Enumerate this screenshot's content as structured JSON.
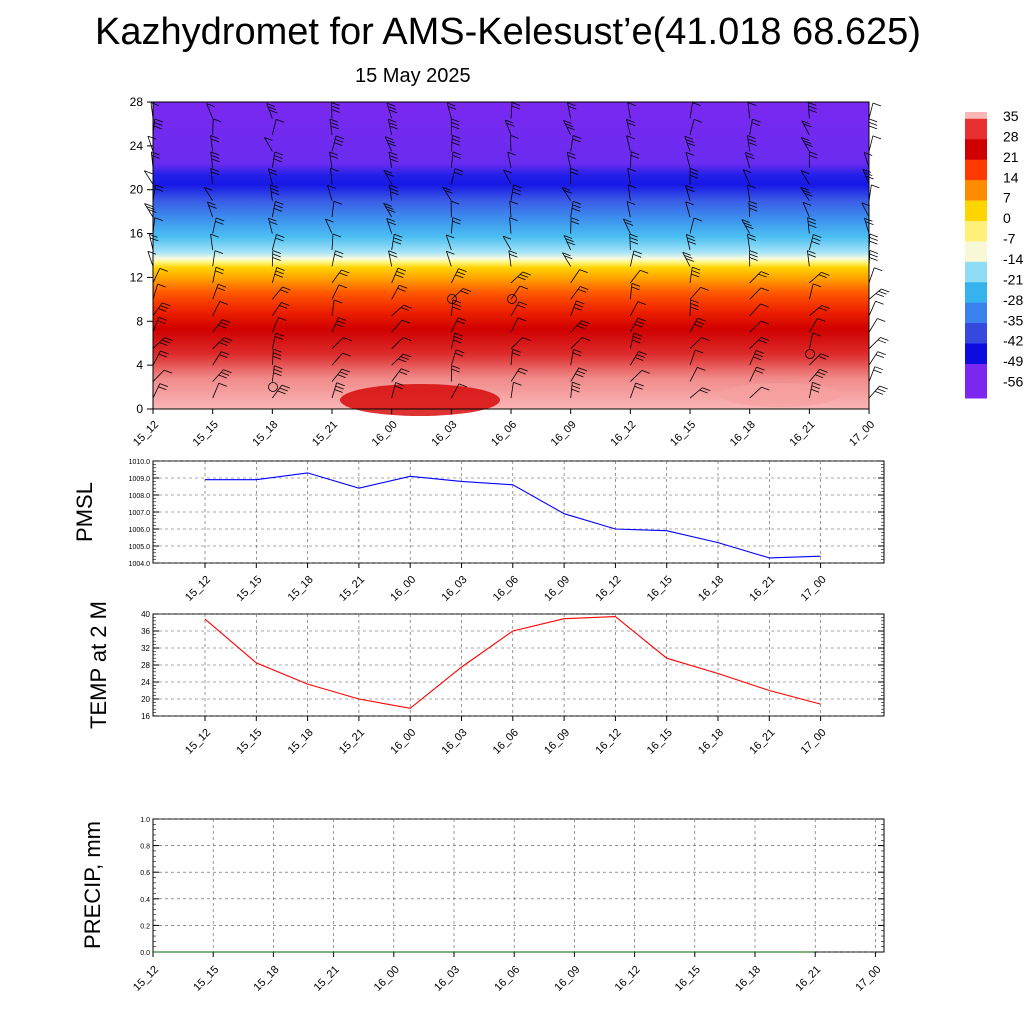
{
  "title": "Kazhydromet for AMS-Kelesust’e(41.018 68.625)",
  "subtitle": "15 May 2025",
  "time_labels": [
    "15_12",
    "15_15",
    "15_18",
    "15_21",
    "16_00",
    "16_03",
    "16_06",
    "16_09",
    "16_12",
    "16_15",
    "16_18",
    "16_21",
    "17_00"
  ],
  "colorbar": {
    "labels": [
      "35",
      "28",
      "21",
      "14",
      "7",
      "0",
      "-7",
      "-14",
      "-21",
      "-28",
      "-35",
      "-42",
      "-49",
      "-56"
    ],
    "colors": [
      "#fbb6b6",
      "#ee3c3c",
      "#d60000",
      "#f23000",
      "#ff6a00",
      "#ffa500",
      "#ffd800",
      "#fbfb9a",
      "#7fd8f5",
      "#2fa8ee",
      "#3f7ef0",
      "#3a48e6",
      "#1010e8",
      "#7a28f0"
    ]
  },
  "chart_data": [
    {
      "type": "heatmap",
      "description": "Vertical profile: temperature shading with wind barbs",
      "x": [
        "15_12",
        "15_15",
        "15_18",
        "15_21",
        "16_00",
        "16_03",
        "16_06",
        "16_09",
        "16_12",
        "16_15",
        "16_18",
        "16_21",
        "17_00"
      ],
      "yticks": [
        0,
        4,
        8,
        12,
        16,
        20,
        24,
        28
      ],
      "ylim": [
        0,
        28
      ],
      "layers": [
        {
          "from": 0,
          "to": 4,
          "temp": 35
        },
        {
          "from": 4,
          "to": 8,
          "temp": 28
        },
        {
          "from": 8,
          "to": 10,
          "temp": 21
        },
        {
          "from": 10,
          "to": 12,
          "temp": 14
        },
        {
          "from": 12,
          "to": 13.5,
          "temp": 0
        },
        {
          "from": 13.5,
          "to": 16,
          "temp": -21
        },
        {
          "from": 16,
          "to": 18,
          "temp": -35
        },
        {
          "from": 18,
          "to": 20,
          "temp": -42
        },
        {
          "from": 20,
          "to": 22,
          "temp": -49
        },
        {
          "from": 22,
          "to": 28,
          "temp": -56
        }
      ]
    },
    {
      "type": "line",
      "ylabel": "PMSL",
      "x": [
        "15_12",
        "15_15",
        "15_18",
        "15_21",
        "16_00",
        "16_03",
        "16_06",
        "16_09",
        "16_12",
        "16_15",
        "16_18",
        "16_21",
        "17_00"
      ],
      "ylim": [
        1004.0,
        1010.0
      ],
      "yticks": [
        "1004.0",
        "1005.0",
        "1006.0",
        "1007.0",
        "1008.0",
        "1009.0",
        "1010.0"
      ],
      "color": "#0000ff",
      "values": [
        1008.9,
        1008.9,
        1009.3,
        1008.4,
        1009.1,
        1008.8,
        1008.6,
        1006.9,
        1006.0,
        1005.9,
        1005.2,
        1004.3,
        1004.4
      ]
    },
    {
      "type": "line",
      "ylabel": "TEMP at 2 M",
      "x": [
        "15_12",
        "15_15",
        "15_18",
        "15_21",
        "16_00",
        "16_03",
        "16_06",
        "16_09",
        "16_12",
        "16_15",
        "16_18",
        "16_21",
        "17_00"
      ],
      "ylim": [
        16,
        40
      ],
      "yticks": [
        "16",
        "20",
        "24",
        "28",
        "32",
        "36",
        "40"
      ],
      "color": "#ff0000",
      "values": [
        38.8,
        28.5,
        23.5,
        20.0,
        17.8,
        27.5,
        36.0,
        38.9,
        39.4,
        29.6,
        26.0,
        22.0,
        18.8
      ]
    },
    {
      "type": "line",
      "ylabel": "PRECIP, mm",
      "x": [
        "15_12",
        "15_15",
        "15_18",
        "15_21",
        "16_00",
        "16_03",
        "16_06",
        "16_09",
        "16_12",
        "16_15",
        "16_18",
        "16_21",
        "17_00"
      ],
      "ylim": [
        0.0,
        1.0
      ],
      "yticks": [
        "0.0",
        "0.2",
        "0.4",
        "0.6",
        "0.8",
        "1.0"
      ],
      "color": "#006400",
      "values": [
        0,
        0,
        0,
        0,
        0,
        0,
        0,
        0,
        0,
        0,
        0,
        0,
        0
      ]
    }
  ]
}
